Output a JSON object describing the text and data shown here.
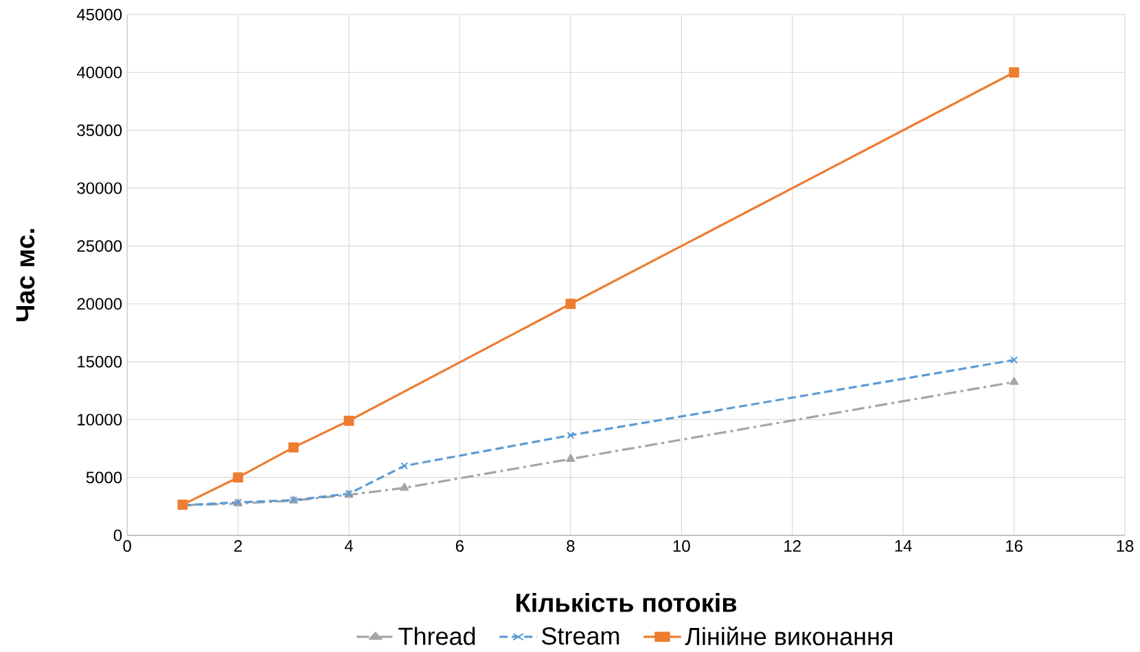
{
  "chart_data": {
    "type": "line",
    "xlabel": "Кількість потоків",
    "ylabel": "Час мс.",
    "xlim": [
      0,
      18
    ],
    "xticks": [
      0,
      2,
      4,
      6,
      8,
      10,
      12,
      14,
      16,
      18
    ],
    "ylim": [
      0,
      45000
    ],
    "yticks": [
      0,
      5000,
      10000,
      15000,
      20000,
      25000,
      30000,
      35000,
      40000,
      45000
    ],
    "grid": true,
    "legend": "bottom",
    "series": [
      {
        "name": "Thread",
        "color": "#a5a5a5",
        "marker": "triangle",
        "line_style": "dashdot",
        "x": [
          1,
          2,
          3,
          4,
          5,
          8,
          16
        ],
        "values": [
          2600,
          2750,
          3000,
          3500,
          4100,
          6600,
          13250
        ]
      },
      {
        "name": "Stream",
        "color": "#5b9bd5",
        "marker": "cross",
        "line_style": "dashed",
        "x": [
          1,
          2,
          3,
          4,
          5,
          8,
          16
        ],
        "values": [
          2600,
          2850,
          3050,
          3600,
          6000,
          8650,
          15150
        ]
      },
      {
        "name": "Лінійне виконання",
        "color": "#ed7d31",
        "marker": "square",
        "line_style": "solid",
        "x": [
          1,
          2,
          3,
          4,
          8,
          16
        ],
        "values": [
          2650,
          5000,
          7600,
          9900,
          20000,
          40000
        ]
      }
    ]
  }
}
